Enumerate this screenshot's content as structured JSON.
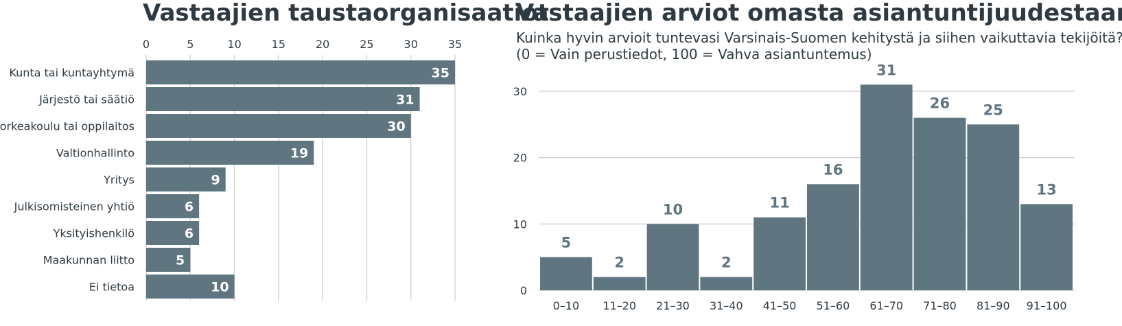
{
  "colors": {
    "bar": "#5f7580",
    "text": "#2e3a42",
    "grid": "#d6d6d6",
    "value_label_outside": "#5f7580"
  },
  "chart_data": [
    {
      "type": "bar",
      "orientation": "horizontal",
      "title": "Vastaajien taustaorganisaatiot",
      "categories": [
        "Kunta tai kuntayhtymä",
        "Järjestö tai säätiö",
        "Korkeakoulu tai oppilaitos",
        "Valtionhallinto",
        "Yritys",
        "Julkisomisteinen yhtiö",
        "Yksityishenkilö",
        "Maakunnan liitto",
        "Ei tietoa"
      ],
      "values": [
        35,
        31,
        30,
        19,
        9,
        6,
        6,
        5,
        10
      ],
      "xlim": [
        0,
        35
      ],
      "ticks": [
        0,
        5,
        10,
        15,
        20,
        25,
        30,
        35
      ],
      "axis_position": "top",
      "grid": true,
      "data_labels": "inside-end"
    },
    {
      "type": "bar",
      "orientation": "vertical",
      "title": "Vastaajien arviot omasta asiantuntijuudestaan",
      "subtitle_lines": [
        "Kuinka hyvin arvioit tuntevasi Varsinais-Suomen kehitystä ja siihen vaikuttavia tekijöitä?",
        "(0 = Vain perustiedot, 100 = Vahva asiantuntemus)"
      ],
      "categories": [
        "0–10",
        "11–20",
        "21–30",
        "31–40",
        "41–50",
        "51–60",
        "61–70",
        "71–80",
        "81–90",
        "91–100"
      ],
      "values": [
        5,
        2,
        10,
        2,
        11,
        16,
        31,
        26,
        25,
        13
      ],
      "ylim": [
        0,
        30
      ],
      "ticks": [
        0,
        10,
        20,
        30
      ],
      "grid": true,
      "data_labels": "above"
    }
  ]
}
